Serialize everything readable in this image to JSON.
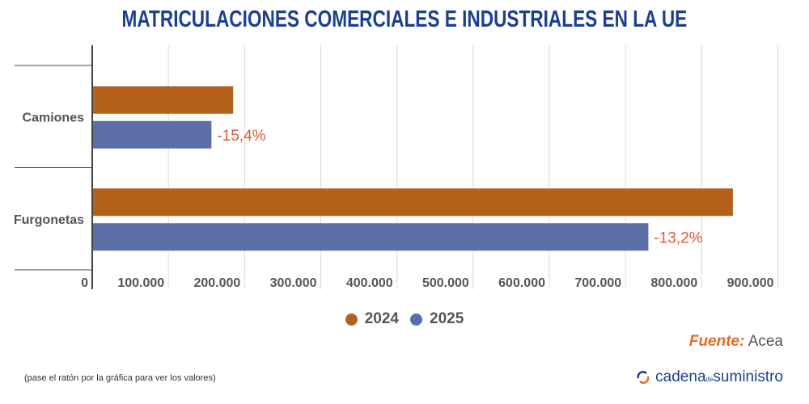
{
  "chart_data": {
    "type": "bar",
    "orientation": "horizontal",
    "title": "MATRICULACIONES COMERCIALES E INDUSTRIALES EN LA UE",
    "categories": [
      "Camiones",
      "Furgonetas"
    ],
    "series": [
      {
        "name": "2024",
        "color": "#b5611b",
        "values": [
          185000,
          841000
        ]
      },
      {
        "name": "2025",
        "color": "#5b6ea6",
        "values": [
          156500,
          730000
        ]
      }
    ],
    "data_labels": [
      "-15,4%",
      "-13,2%"
    ],
    "xlim": [
      0,
      900000
    ],
    "x_ticks": [
      "0",
      "100.000",
      "200.000",
      "300.000",
      "400.000",
      "500.000",
      "600.000",
      "700.000",
      "800.000",
      "900.000"
    ],
    "grid": true,
    "legend": "bottom"
  },
  "source": {
    "label": "Fuente:",
    "value": "Acea"
  },
  "note": "(pase el ratón por la gráfica para ver los valores)",
  "logo": {
    "text1": "cadena",
    "text2": "de",
    "text3": "suministro"
  }
}
